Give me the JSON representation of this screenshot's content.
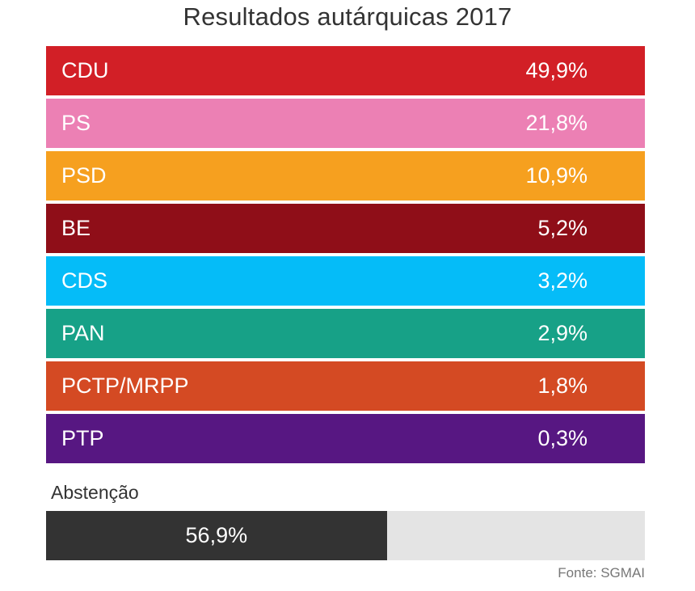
{
  "title": "Resultados autárquicas 2017",
  "chart_data": {
    "type": "table",
    "title": "Resultados autárquicas 2017",
    "categories": [
      "CDU",
      "PS",
      "PSD",
      "BE",
      "CDS",
      "PAN",
      "PCTP/MRPP",
      "PTP"
    ],
    "values": [
      49.9,
      21.8,
      10.9,
      5.2,
      3.2,
      2.9,
      1.8,
      0.3
    ],
    "value_labels": [
      "49,9%",
      "21,8%",
      "10,9%",
      "5,2%",
      "3,2%",
      "2,9%",
      "1,8%",
      "0,3%"
    ],
    "colors": [
      "#d21f26",
      "#ec80b4",
      "#f6a01f",
      "#8f0e18",
      "#05bcf8",
      "#17a187",
      "#d44a23",
      "#571782"
    ],
    "unit": "%",
    "abstention": {
      "label": "Abstenção",
      "value": 56.9,
      "value_label": "56,9%",
      "fill_color": "#333333",
      "track_color": "#e4e4e4"
    },
    "source": "Fonte: SGMAI"
  }
}
